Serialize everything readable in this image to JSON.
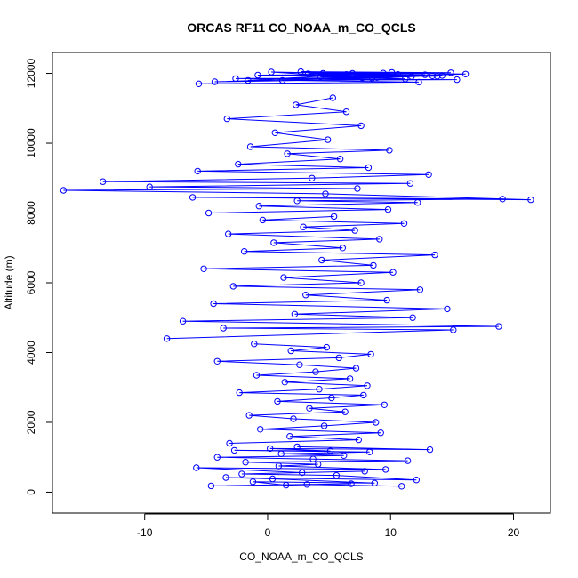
{
  "chart_data": {
    "type": "scatter",
    "title": "ORCAS RF11 CO_NOAA_m_CO_QCLS",
    "xlabel": "CO_NOAA_m_CO_QCLS",
    "ylabel": "Altitude (m)",
    "xlim": [
      -17.5,
      23
    ],
    "ylim": [
      -600,
      12600
    ],
    "xticks": [
      -10,
      0,
      10,
      20
    ],
    "yticks": [
      0,
      2000,
      4000,
      6000,
      8000,
      10000,
      12000
    ],
    "grid": false,
    "legend": "none",
    "series": [
      {
        "color": "#0000ff",
        "marker": "open-circle",
        "connected": true,
        "x": [
          10.9,
          3.2,
          -4.6,
          6.8,
          1.5,
          -1.2,
          8.7,
          0.4,
          -3.4,
          12.1,
          5.6,
          -2.1,
          7.9,
          2.8,
          -5.8,
          9.6,
          0.9,
          4.1,
          -1.8,
          11.4,
          3.7,
          -4.1,
          6.2,
          1.1,
          8.3,
          -2.7,
          5.1,
          0.2,
          13.2,
          2.4
        ],
        "y": [
          170,
          220,
          180,
          240,
          200,
          300,
          260,
          380,
          420,
          350,
          480,
          520,
          600,
          560,
          700,
          650,
          750,
          800,
          860,
          900,
          950,
          1000,
          1050,
          1100,
          1150,
          1200,
          1180,
          1250,
          1220,
          1300
        ]
      },
      {
        "color": "#0000ff",
        "marker": "open-circle",
        "connected": true,
        "x": [
          -3.1,
          7.4,
          1.8,
          9.2,
          -0.6,
          4.6,
          8.8,
          2.1,
          -1.5,
          6.3,
          3.4,
          9.5,
          0.8,
          5.2,
          7.8,
          -2.3,
          4.2,
          8.1,
          1.4,
          6.7,
          -0.9,
          3.9,
          7.2,
          2.6,
          -4.1,
          5.8,
          8.4,
          1.9,
          4.8,
          -1.1
        ],
        "y": [
          1400,
          1500,
          1600,
          1700,
          1800,
          1900,
          2000,
          2100,
          2200,
          2300,
          2400,
          2500,
          2600,
          2700,
          2780,
          2850,
          2950,
          3050,
          3150,
          3250,
          3350,
          3450,
          3550,
          3650,
          3750,
          3850,
          3950,
          4050,
          4150,
          4250
        ]
      },
      {
        "color": "#0000ff",
        "marker": "open-circle",
        "connected": true,
        "x": [
          -8.2,
          15.1,
          -3.6,
          18.8,
          -6.9,
          11.8,
          2.2,
          14.6,
          -4.4,
          9.7,
          3.1,
          12.4,
          -2.8,
          7.6,
          1.3,
          10.2,
          -5.2,
          8.6,
          4.4,
          13.6,
          -1.9,
          6.1,
          0.5,
          9.1,
          -3.2,
          7.1,
          2.9,
          11.1,
          -0.4,
          5.4
        ],
        "y": [
          4400,
          4650,
          4700,
          4750,
          4900,
          5000,
          5100,
          5250,
          5400,
          5500,
          5650,
          5800,
          5900,
          6000,
          6150,
          6300,
          6400,
          6500,
          6650,
          6800,
          6900,
          7000,
          7150,
          7250,
          7400,
          7500,
          7600,
          7700,
          7800,
          7900
        ]
      },
      {
        "color": "#0000ff",
        "marker": "open-circle",
        "connected": true,
        "x": [
          -4.8,
          9.8,
          -0.7,
          12.2,
          2.4,
          19.1,
          -6.1,
          21.4,
          4.7,
          -16.6,
          7.3,
          -9.6,
          11.6,
          -13.4,
          3.6,
          13.1,
          -5.7,
          8.2,
          -2.4,
          5.9,
          1.6,
          9.9,
          -1.4,
          4.9,
          0.6,
          7.6,
          -3.3,
          6.4,
          2.3,
          5.3
        ],
        "y": [
          8000,
          8100,
          8200,
          8300,
          8350,
          8400,
          8450,
          8380,
          8550,
          8650,
          8700,
          8750,
          8850,
          8900,
          9000,
          9100,
          9200,
          9300,
          9400,
          9550,
          9700,
          9800,
          9900,
          10100,
          10300,
          10500,
          10700,
          10900,
          11100,
          11300
        ]
      },
      {
        "color": "#0000ff",
        "marker": "open-circle",
        "connected": true,
        "x": [
          -5.6,
          12.3,
          1.2,
          15.4,
          -2.6,
          8.9,
          4.3,
          13.8,
          -0.8,
          10.6,
          6.9,
          14.9,
          2.7,
          9.4,
          16.1,
          -4.3,
          11.2,
          5.7,
          12.8,
          0.3,
          7.7,
          13.4,
          3.3,
          10.1,
          -1.6,
          8.5,
          14.2,
          4.5,
          11.7,
          6.4
        ],
        "y": [
          11700,
          11750,
          11800,
          11820,
          11850,
          11880,
          11900,
          11920,
          11950,
          11970,
          12000,
          12020,
          12050,
          12010,
          11980,
          11760,
          11840,
          11900,
          11960,
          12040,
          11870,
          11930,
          11990,
          12030,
          11800,
          11860,
          11940,
          12000,
          11910,
          11970
        ]
      }
    ]
  }
}
